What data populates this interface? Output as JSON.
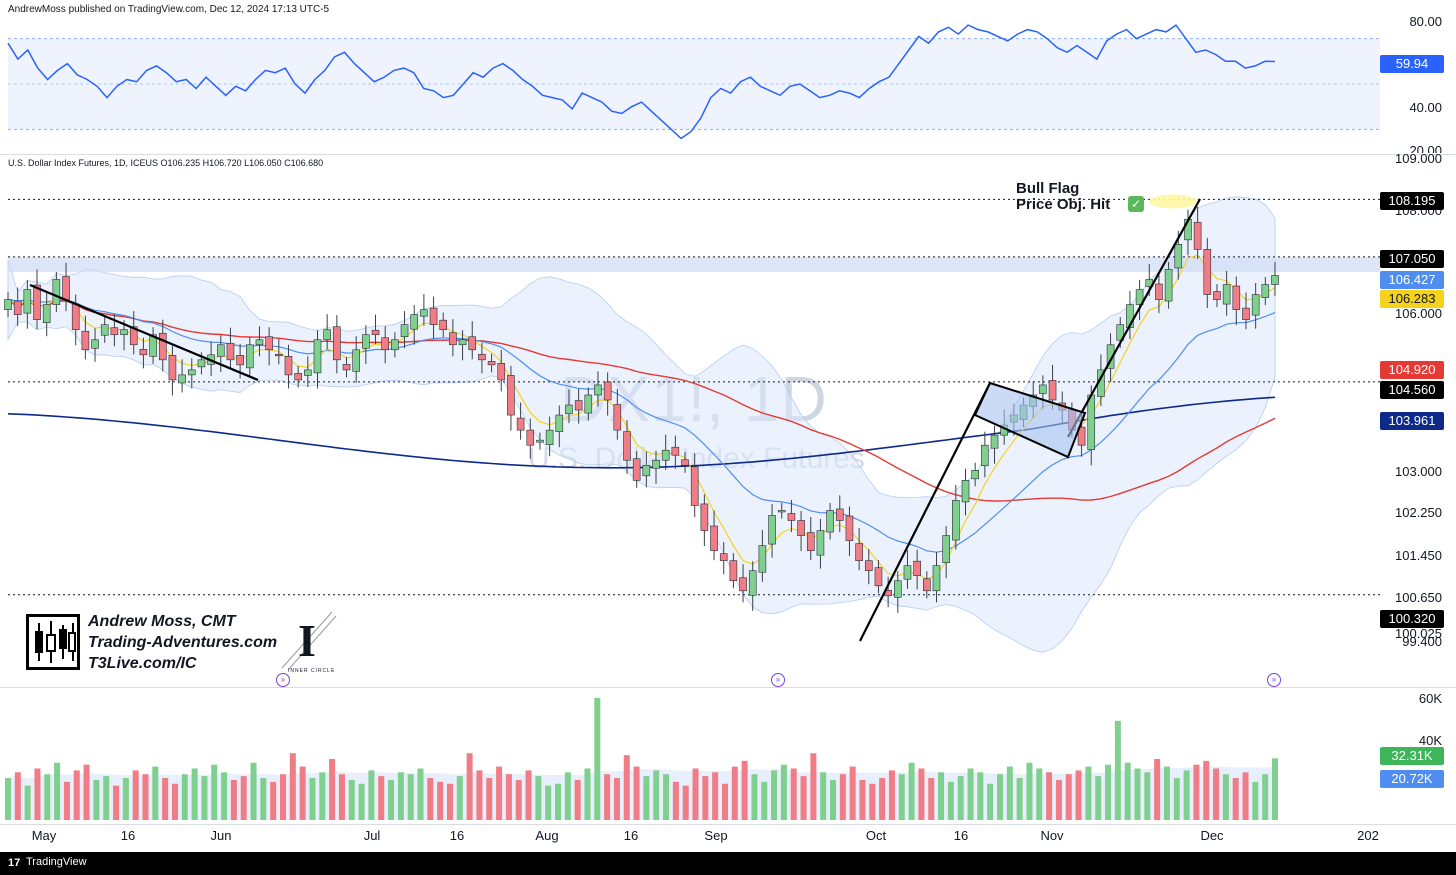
{
  "header": {
    "publisher": "AndrewMoss published on TradingView.com, Dec 12, 2024 17:13 UTC-5",
    "symbol_info": "U.S. Dollar Index Futures, 1D, ICEUS  O106.235  H106.720  L106.050  C106.680"
  },
  "watermark": {
    "symbol": "DX1!, 1D",
    "name": "U.S. Dollar Index Futures"
  },
  "annotation": {
    "line1": "Bull Flag",
    "line2": "Price Obj. Hit",
    "check": "✓"
  },
  "branding": {
    "line1": "Andrew Moss, CMT",
    "line2": "Trading-Adventures.com",
    "line3": "T3Live.com/IC",
    "logo_letter": "I",
    "logo_caption": "INNER CIRCLE"
  },
  "footer": {
    "brand": "TradingView",
    "logo": "17"
  },
  "colors": {
    "up": "#7fcf8e",
    "down": "#f07c86",
    "rsi": "#2962ff",
    "ema_fast": "#f5d31c",
    "ema_mid": "#4f8ef0",
    "sma50": "#e53935",
    "sma200": "#0d2a8a",
    "band": "#dbe7fb"
  },
  "chart_data": [
    {
      "type": "line",
      "name": "RSI",
      "y_axis_ticks": [
        "80.00",
        "40.00",
        "20.00"
      ],
      "ylim": [
        20,
        80
      ],
      "last_value_label": "59.94",
      "values": [
        68,
        61,
        65,
        57,
        52,
        56,
        59,
        54,
        52,
        49,
        44,
        49,
        52,
        51,
        56,
        58,
        55,
        51,
        52,
        48,
        53,
        49,
        45,
        49,
        47,
        52,
        56,
        55,
        57,
        50,
        46,
        52,
        56,
        62,
        64,
        59,
        55,
        51,
        53,
        56,
        57,
        55,
        48,
        47,
        44,
        45,
        50,
        55,
        53,
        57,
        59,
        56,
        52,
        49,
        45,
        44,
        43,
        39,
        46,
        44,
        42,
        38,
        37,
        40,
        42,
        38,
        34,
        30,
        26,
        29,
        35,
        44,
        48,
        46,
        51,
        53,
        49,
        47,
        45,
        49,
        50,
        47,
        44,
        45,
        47,
        46,
        44,
        48,
        51,
        53,
        59,
        65,
        71,
        68,
        73,
        75,
        72,
        76,
        74,
        73,
        71,
        69,
        72,
        74,
        73,
        70,
        66,
        64,
        67,
        64,
        61,
        69,
        72,
        74,
        70,
        72,
        74,
        73,
        76,
        70,
        64,
        65,
        63,
        60,
        60,
        57,
        58,
        60,
        59.94
      ]
    },
    {
      "type": "candlestick",
      "name": "DX1!, 1D",
      "x_axis_ticks": [
        "May",
        "16",
        "Jun",
        "Jul",
        "16",
        "Aug",
        "16",
        "Sep",
        "Oct",
        "16",
        "Nov",
        "Dec",
        "202"
      ],
      "y_axis_ticks": [
        "109.000",
        "108.000",
        "106.000",
        "103.000",
        "102.250",
        "101.450",
        "100.650",
        "100.025",
        "99.400"
      ],
      "price_tags": [
        {
          "label": "108.195",
          "color": "#000000"
        },
        {
          "label": "107.050",
          "color": "#000000"
        },
        {
          "label": "106.427",
          "color": "#4f8ef0"
        },
        {
          "label": "106.283",
          "color": "#f5d31c"
        },
        {
          "label": "104.920",
          "color": "#e53935"
        },
        {
          "label": "104.560",
          "color": "#000000"
        },
        {
          "label": "103.961",
          "color": "#0d2a8a"
        },
        {
          "label": "100.320",
          "color": "#000000"
        }
      ],
      "last": {
        "open": 106.235,
        "high": 106.72,
        "low": 106.05,
        "close": 106.68
      },
      "close": [
        106.2,
        105.9,
        106.4,
        105.8,
        106.1,
        106.6,
        106.2,
        105.6,
        105.2,
        105.4,
        105.7,
        105.5,
        105.6,
        105.3,
        105.1,
        105.5,
        105.0,
        104.6,
        104.7,
        104.8,
        105.0,
        105.1,
        105.3,
        105.0,
        104.9,
        105.3,
        105.4,
        105.2,
        105.1,
        104.7,
        104.6,
        104.8,
        105.4,
        105.6,
        105.0,
        104.8,
        105.2,
        105.5,
        105.5,
        105.2,
        105.4,
        105.7,
        105.9,
        106.0,
        105.7,
        105.6,
        105.3,
        105.4,
        105.2,
        105.0,
        104.9,
        104.6,
        103.9,
        103.6,
        103.3,
        103.4,
        103.6,
        103.9,
        104.1,
        104.0,
        104.3,
        104.5,
        104.2,
        103.6,
        103.0,
        102.6,
        102.9,
        103.0,
        103.2,
        103.1,
        102.9,
        102.1,
        101.6,
        101.2,
        101.0,
        100.6,
        100.4,
        100.8,
        101.3,
        101.9,
        102.0,
        101.8,
        101.5,
        101.2,
        101.6,
        102.0,
        101.8,
        101.4,
        101.0,
        100.8,
        100.5,
        100.3,
        100.6,
        100.9,
        100.7,
        100.4,
        100.9,
        101.5,
        102.2,
        102.6,
        102.8,
        103.3,
        103.5,
        103.7,
        103.9,
        104.1,
        104.3,
        104.5,
        104.2,
        104.0,
        103.6,
        103.3,
        104.3,
        104.8,
        105.3,
        105.7,
        106.1,
        106.4,
        106.6,
        106.2,
        106.8,
        107.3,
        107.8,
        107.2,
        106.3,
        106.2,
        106.5,
        106.0,
        105.8,
        106.3,
        106.5,
        106.68
      ]
    },
    {
      "type": "bar",
      "name": "Volume",
      "y_axis_ticks": [
        "60K",
        "40K"
      ],
      "ylim": [
        0,
        65
      ],
      "last_value_label": "32.31K",
      "ma_value_label": "20.72K",
      "values": [
        22,
        25,
        18,
        27,
        24,
        30,
        20,
        26,
        29,
        21,
        23,
        18,
        22,
        26,
        24,
        28,
        22,
        19,
        24,
        27,
        23,
        29,
        25,
        21,
        23,
        30,
        22,
        20,
        24,
        35,
        28,
        22,
        25,
        32,
        24,
        21,
        19,
        26,
        23,
        21,
        25,
        24,
        27,
        22,
        20,
        19,
        23,
        35,
        26,
        22,
        28,
        24,
        21,
        26,
        23,
        18,
        19,
        25,
        21,
        27,
        64,
        24,
        22,
        34,
        28,
        23,
        26,
        24,
        20,
        18,
        27,
        23,
        25,
        19,
        28,
        31,
        24,
        20,
        26,
        29,
        27,
        23,
        35,
        25,
        21,
        24,
        28,
        21,
        19,
        22,
        26,
        24,
        30,
        27,
        22,
        25,
        20,
        23,
        27,
        25,
        19,
        24,
        28,
        22,
        30,
        27,
        25,
        21,
        24,
        26,
        28,
        23,
        29,
        52,
        30,
        27,
        25,
        32,
        28,
        22,
        26,
        29,
        31,
        27,
        24,
        22,
        25,
        20,
        24,
        32.31
      ]
    }
  ]
}
